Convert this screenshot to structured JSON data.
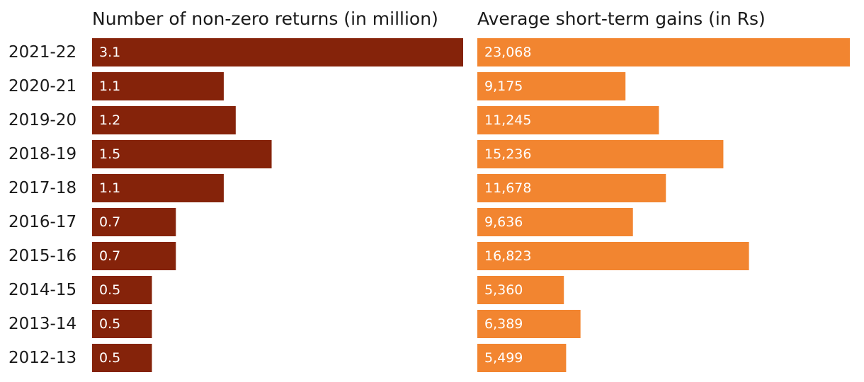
{
  "chart_data": {
    "type": "bar",
    "orientation": "horizontal",
    "categories": [
      "2021-22",
      "2020-21",
      "2019-20",
      "2018-19",
      "2017-18",
      "2016-17",
      "2015-16",
      "2014-15",
      "2013-14",
      "2012-13"
    ],
    "series": [
      {
        "name": "Number of non-zero returns (in million)",
        "title": "Number of non-zero returns (in million)",
        "values": [
          3.1,
          1.1,
          1.2,
          1.5,
          1.1,
          0.7,
          0.7,
          0.5,
          0.5,
          0.5
        ],
        "labels": [
          "3.1",
          "1.1",
          "1.2",
          "1.5",
          "1.1",
          "0.7",
          "0.7",
          "0.5",
          "0.5",
          "0.5"
        ],
        "color": "#85230A",
        "xlim": [
          0,
          3.1
        ]
      },
      {
        "name": "Average short-term gains (in Rs)",
        "title": "Average short-term gains (in Rs)",
        "values": [
          23068,
          9175,
          11245,
          15236,
          11678,
          9636,
          16823,
          5360,
          6389,
          5499
        ],
        "labels": [
          "23,068",
          "9,175",
          "11,245",
          "15,236",
          "11,678",
          "9,636",
          "16,823",
          "5,360",
          "6,389",
          "5,499"
        ],
        "color": "#F28530",
        "xlim": [
          0,
          23068
        ]
      }
    ],
    "legend": "none",
    "grid": false
  }
}
